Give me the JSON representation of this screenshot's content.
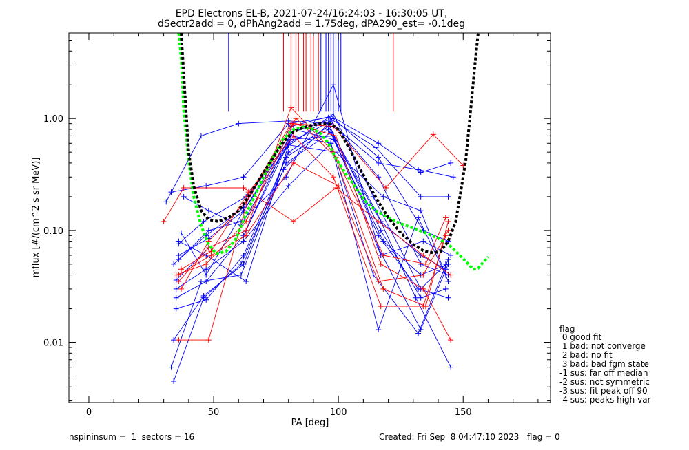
{
  "chart_data": {
    "type": "line",
    "title": "EPD Electrons EL-B, 2021-07-24/16:24:03 - 16:30:05 UT,",
    "subtitle": "dSectr2add = 0, dPhAng2add = 1.75deg, dPA290_est=  -0.1deg",
    "xlabel": "PA [deg]",
    "ylabel": "mflux [#/(cm^2 s sr MeV)]",
    "xlim": [
      -8,
      185
    ],
    "ylim": [
      0.0029,
      5.8
    ],
    "y_scale": "log",
    "x_ticks": [
      {
        "v": 0,
        "l": "0"
      },
      {
        "v": 50,
        "l": "50"
      },
      {
        "v": 100,
        "l": "100"
      },
      {
        "v": 150,
        "l": "150"
      }
    ],
    "y_ticks": [
      {
        "v": 1.0,
        "l": "1.00"
      },
      {
        "v": 0.1,
        "l": "0.10"
      },
      {
        "v": 0.01,
        "l": "0.01"
      }
    ],
    "colors": {
      "blue": "#0000ff",
      "red": "#ff0000",
      "green": "#00ff00",
      "black": "#000000"
    },
    "vertical_markers": {
      "blue": {
        "pa": [
          56,
          93,
          95,
          96,
          97,
          98,
          99,
          100,
          101
        ],
        "top": 5.8,
        "bottom": 1.15
      },
      "red": {
        "pa": [
          78,
          81,
          83,
          84,
          86,
          87,
          89,
          90,
          92,
          122
        ],
        "top": 5.8,
        "bottom": 1.15
      }
    },
    "fit_curves": [
      {
        "style": "green-dashed",
        "color": "#00ff00",
        "x": [
          36,
          37,
          38,
          40,
          42,
          45,
          48,
          51,
          55,
          59,
          63,
          68,
          73,
          78,
          82,
          86,
          90,
          93,
          96,
          99,
          103,
          107,
          111,
          115,
          120,
          125,
          130,
          135,
          140,
          145,
          150,
          154,
          156,
          158,
          160
        ],
        "y": [
          5.8,
          3.5,
          1.2,
          0.42,
          0.2,
          0.11,
          0.075,
          0.062,
          0.065,
          0.085,
          0.14,
          0.24,
          0.42,
          0.66,
          0.8,
          0.84,
          0.8,
          0.73,
          0.6,
          0.44,
          0.32,
          0.24,
          0.18,
          0.15,
          0.13,
          0.115,
          0.105,
          0.095,
          0.085,
          0.072,
          0.056,
          0.045,
          0.046,
          0.052,
          0.058
        ]
      },
      {
        "style": "black-dashed",
        "color": "#000000",
        "x": [
          37,
          38,
          40,
          42,
          45,
          48,
          52,
          56,
          60,
          64,
          68,
          73,
          78,
          82,
          86,
          90,
          94,
          97,
          100,
          104,
          108,
          112,
          116,
          120,
          125,
          130,
          134,
          138,
          141,
          144,
          147,
          149,
          151,
          153,
          155,
          156
        ],
        "y": [
          5.8,
          2.5,
          0.5,
          0.25,
          0.15,
          0.125,
          0.12,
          0.13,
          0.15,
          0.2,
          0.28,
          0.42,
          0.62,
          0.76,
          0.83,
          0.88,
          0.9,
          0.89,
          0.8,
          0.56,
          0.38,
          0.26,
          0.18,
          0.13,
          0.095,
          0.075,
          0.066,
          0.063,
          0.065,
          0.08,
          0.12,
          0.22,
          0.42,
          1.2,
          3.5,
          5.8
        ]
      }
    ],
    "series": [
      {
        "color": "blue",
        "x": [
          31,
          45,
          60,
          80,
          97,
          116,
          132,
          146
        ],
        "y": [
          0.18,
          0.7,
          0.9,
          0.95,
          0.9,
          0.4,
          0.35,
          0.3
        ]
      },
      {
        "color": "blue",
        "x": [
          33,
          47,
          62,
          80,
          96,
          115,
          133,
          144
        ],
        "y": [
          0.22,
          0.25,
          0.3,
          0.9,
          1.02,
          0.55,
          0.2,
          0.2
        ]
      },
      {
        "color": "blue",
        "x": [
          34,
          47,
          62,
          81,
          97,
          116,
          133,
          145
        ],
        "y": [
          0.05,
          0.09,
          0.16,
          0.85,
          1.05,
          0.6,
          0.33,
          0.4
        ]
      },
      {
        "color": "blue",
        "x": [
          35,
          48,
          63,
          81,
          98,
          116,
          134,
          144
        ],
        "y": [
          0.036,
          0.07,
          0.1,
          0.75,
          1.0,
          0.45,
          0.1,
          0.08
        ]
      },
      {
        "color": "blue",
        "x": [
          35,
          47,
          62,
          80,
          97,
          116,
          133,
          144
        ],
        "y": [
          0.025,
          0.035,
          0.09,
          0.6,
          0.95,
          0.3,
          0.05,
          0.04
        ]
      },
      {
        "color": "blue",
        "x": [
          36,
          46,
          63,
          79,
          98,
          114,
          133,
          143
        ],
        "y": [
          0.076,
          0.12,
          0.2,
          0.55,
          1.1,
          0.2,
          0.03,
          0.05
        ]
      },
      {
        "color": "blue",
        "x": [
          35,
          47,
          62,
          80,
          96,
          115,
          131,
          145
        ],
        "y": [
          0.02,
          0.024,
          0.06,
          0.5,
          0.85,
          0.15,
          0.025,
          0.006
        ]
      },
      {
        "color": "blue",
        "x": [
          34,
          46,
          62,
          79,
          96,
          117,
          133,
          143
        ],
        "y": [
          0.0105,
          0.026,
          0.05,
          0.45,
          0.8,
          0.12,
          0.06,
          0.045
        ]
      },
      {
        "color": "blue",
        "x": [
          33,
          45,
          61,
          79,
          97,
          116,
          132,
          144
        ],
        "y": [
          0.006,
          0.035,
          0.04,
          0.4,
          0.75,
          0.09,
          0.03,
          0.025
        ]
      },
      {
        "color": "blue",
        "x": [
          34,
          46,
          61,
          78,
          96,
          117,
          133,
          143
        ],
        "y": [
          0.0045,
          0.025,
          0.05,
          0.35,
          0.9,
          0.1,
          0.025,
          0.03
        ]
      },
      {
        "color": "blue",
        "x": [
          36,
          48,
          61,
          79,
          98,
          116,
          133,
          144
        ],
        "y": [
          0.055,
          0.1,
          0.12,
          0.3,
          2.0,
          0.07,
          0.013,
          0.05
        ]
      },
      {
        "color": "blue",
        "x": [
          35,
          47,
          62,
          80,
          97,
          114,
          132,
          144
        ],
        "y": [
          0.03,
          0.045,
          0.08,
          0.25,
          0.6,
          0.04,
          0.012,
          0.055
        ]
      },
      {
        "color": "blue",
        "x": [
          38,
          48,
          61,
          81,
          98,
          117,
          134,
          145
        ],
        "y": [
          0.2,
          0.15,
          0.11,
          0.65,
          0.7,
          0.06,
          0.08,
          0.06
        ]
      },
      {
        "color": "blue",
        "x": [
          36,
          47,
          63,
          82,
          98,
          118,
          133,
          144
        ],
        "y": [
          0.08,
          0.06,
          0.035,
          0.8,
          0.65,
          0.08,
          0.04,
          0.05
        ]
      },
      {
        "color": "blue",
        "x": [
          37,
          47,
          62,
          81,
          97,
          116,
          132,
          143
        ],
        "y": [
          0.095,
          0.04,
          0.15,
          0.7,
          0.6,
          0.013,
          0.13,
          0.04
        ]
      },
      {
        "color": "blue",
        "x": [
          36,
          48,
          62,
          80,
          99,
          118,
          133,
          144
        ],
        "y": [
          0.06,
          0.085,
          0.15,
          0.58,
          0.5,
          0.2,
          0.15,
          0.035
        ]
      },
      {
        "color": "red",
        "x": [
          30,
          38,
          62,
          82,
          99,
          116,
          134,
          145
        ],
        "y": [
          0.12,
          0.24,
          0.24,
          0.12,
          0.24,
          0.12,
          0.06,
          0.04
        ]
      },
      {
        "color": "red",
        "x": [
          36,
          48,
          64,
          81,
          98,
          119,
          138,
          150
        ],
        "y": [
          0.0105,
          0.0105,
          0.2,
          0.9,
          0.85,
          0.24,
          0.72,
          0.38
        ]
      },
      {
        "color": "red",
        "x": [
          35,
          47,
          63,
          82,
          99,
          117,
          134,
          145
        ],
        "y": [
          0.04,
          0.05,
          0.12,
          0.9,
          0.7,
          0.05,
          0.03,
          0.0105
        ]
      },
      {
        "color": "red",
        "x": [
          36,
          48,
          63,
          81,
          98,
          118,
          135,
          144
        ],
        "y": [
          0.035,
          0.07,
          0.1,
          1.25,
          0.5,
          0.03,
          0.021,
          0.12
        ]
      },
      {
        "color": "red",
        "x": [
          37,
          49,
          64,
          82,
          98,
          117,
          134,
          143
        ],
        "y": [
          0.045,
          0.065,
          0.22,
          0.7,
          0.3,
          0.021,
          0.021,
          0.09
        ]
      },
      {
        "color": "red",
        "x": [
          37,
          48,
          63,
          83,
          99,
          118,
          135,
          143
        ],
        "y": [
          0.03,
          0.08,
          0.18,
          1.0,
          0.45,
          0.06,
          0.05,
          0.13
        ]
      },
      {
        "color": "red",
        "x": [
          36,
          49,
          63,
          82,
          100,
          116,
          134,
          144
        ],
        "y": [
          0.04,
          0.06,
          0.09,
          0.4,
          0.25,
          0.035,
          0.04,
          0.1
        ]
      }
    ],
    "legend": {
      "placement": "right",
      "title": "flag",
      "entries": [
        " 0 good fit",
        " 1 bad: not converge",
        " 2 bad: no fit",
        " 3 bad: bad fgm state",
        "-1 sus: far off median",
        "-2 sus: not symmetric",
        "-3 sus: fit peak off 90",
        "-4 sus: peaks high var"
      ]
    },
    "footer": {
      "left": "nspininsum =  1  sectors = 16",
      "right": "Created: Fri Sep  8 04:47:10 2023   flag = 0"
    }
  }
}
